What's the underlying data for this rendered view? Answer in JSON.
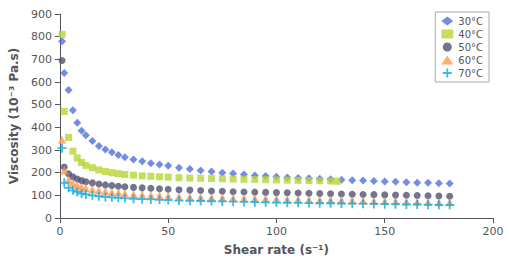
{
  "chart_data": {
    "type": "scatter",
    "xlabel": "Shear rate (s⁻¹)",
    "ylabel": "Viscosity (10⁻³ Pa.s)",
    "xlim": [
      0,
      200
    ],
    "ylim": [
      0,
      900
    ],
    "xticks": [
      0,
      50,
      100,
      150,
      200
    ],
    "yticks": [
      0,
      100,
      200,
      300,
      400,
      500,
      600,
      700,
      800,
      900
    ],
    "grid": false,
    "legend": "upper right",
    "series": [
      {
        "name": "30°C",
        "marker": "diamond",
        "x": [
          1,
          2,
          4,
          6,
          8,
          10,
          12,
          15,
          18,
          21,
          24,
          27,
          30,
          34,
          38,
          42,
          46,
          50,
          55,
          60,
          65,
          70,
          75,
          80,
          85,
          90,
          95,
          100,
          105,
          110,
          115,
          120,
          125,
          130,
          135,
          140,
          145,
          150,
          155,
          160,
          165,
          170,
          175,
          180
        ],
        "values": [
          780,
          640,
          565,
          475,
          420,
          385,
          365,
          340,
          318,
          302,
          290,
          278,
          268,
          258,
          250,
          242,
          236,
          230,
          222,
          216,
          210,
          205,
          200,
          196,
          192,
          188,
          185,
          182,
          179,
          177,
          175,
          173,
          171,
          169,
          167,
          165,
          163,
          161,
          160,
          158,
          156,
          155,
          153,
          152
        ]
      },
      {
        "name": "40°C",
        "marker": "square",
        "x": [
          1,
          2,
          4,
          6,
          8,
          10,
          12,
          15,
          18,
          21,
          24,
          27,
          30,
          34,
          38,
          42,
          46,
          50,
          55,
          60,
          65,
          70,
          75,
          80,
          85,
          90,
          95,
          100,
          105,
          110,
          115,
          120,
          125,
          128
        ],
        "values": [
          810,
          470,
          355,
          295,
          265,
          245,
          232,
          222,
          212,
          205,
          200,
          196,
          192,
          189,
          186,
          184,
          182,
          180,
          178,
          176,
          175,
          174,
          173,
          172,
          171,
          170,
          169,
          168,
          167,
          166,
          165,
          164,
          163,
          162
        ]
      },
      {
        "name": "50°C",
        "marker": "circle",
        "x": [
          1,
          2,
          4,
          6,
          8,
          10,
          12,
          15,
          18,
          21,
          24,
          27,
          30,
          34,
          38,
          42,
          46,
          50,
          55,
          60,
          65,
          70,
          75,
          80,
          85,
          90,
          95,
          100,
          105,
          110,
          115,
          120,
          125,
          130,
          135,
          140,
          145,
          150,
          155,
          160,
          165,
          170,
          175,
          180
        ],
        "values": [
          695,
          225,
          195,
          182,
          172,
          165,
          160,
          155,
          150,
          146,
          143,
          140,
          138,
          135,
          133,
          131,
          129,
          127,
          125,
          123,
          121,
          119,
          118,
          116,
          115,
          114,
          113,
          112,
          111,
          110,
          109,
          108,
          107,
          106,
          105,
          104,
          103,
          102,
          101,
          100,
          99,
          98,
          97,
          96
        ]
      },
      {
        "name": "60°C",
        "marker": "triangle",
        "x": [
          1,
          2,
          4,
          6,
          8,
          10,
          12,
          15,
          18,
          21,
          24,
          27,
          30,
          34,
          38,
          42,
          46,
          50,
          55,
          60,
          65,
          70,
          75,
          80,
          85,
          90,
          95,
          100,
          105,
          110,
          115,
          120,
          125,
          130,
          135,
          140,
          145,
          150,
          155,
          160,
          165,
          170,
          175,
          180
        ],
        "values": [
          345,
          210,
          170,
          155,
          145,
          138,
          132,
          127,
          122,
          118,
          115,
          112,
          109,
          106,
          104,
          102,
          100,
          98,
          96,
          94,
          93,
          91,
          90,
          89,
          88,
          87,
          86,
          85,
          84,
          83,
          82,
          81,
          80,
          79,
          78,
          77,
          76,
          75,
          74,
          73,
          72,
          71,
          70,
          69
        ]
      },
      {
        "name": "70°C",
        "marker": "plus",
        "x": [
          1,
          2,
          4,
          6,
          8,
          10,
          12,
          15,
          18,
          21,
          24,
          27,
          30,
          34,
          38,
          42,
          46,
          50,
          55,
          60,
          65,
          70,
          75,
          80,
          85,
          90,
          95,
          100,
          105,
          110,
          115,
          120,
          125,
          130,
          135,
          140,
          145,
          150,
          155,
          160,
          165,
          170,
          175,
          180
        ],
        "values": [
          308,
          155,
          133,
          122,
          115,
          108,
          104,
          100,
          96,
          93,
          91,
          89,
          87,
          85,
          83,
          82,
          80,
          79,
          77,
          76,
          75,
          74,
          73,
          72,
          71,
          70,
          69,
          68,
          67,
          67,
          66,
          65,
          65,
          64,
          63,
          63,
          62,
          61,
          61,
          60,
          60,
          59,
          58,
          58
        ]
      }
    ]
  }
}
